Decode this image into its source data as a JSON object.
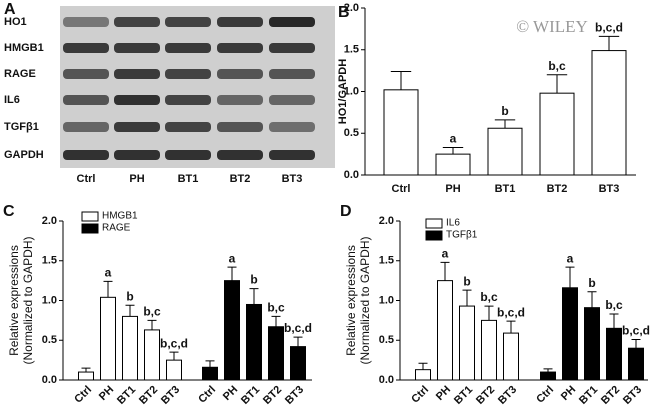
{
  "blot": {
    "panel": "A",
    "rows": [
      "HO1",
      "HMGB1",
      "RAGE",
      "IL6",
      "TGFβ1",
      "GAPDH"
    ],
    "lanes": [
      "Ctrl",
      "PH",
      "BT1",
      "BT2",
      "BT3"
    ]
  },
  "watermark": "© WILEY",
  "chart_data": [
    {
      "type": "bar",
      "panel": "B",
      "ylabel": "HO1/GAPDH",
      "categories": [
        "Ctrl",
        "PH",
        "BT1",
        "BT2",
        "BT3"
      ],
      "values": [
        1.02,
        0.25,
        0.56,
        0.98,
        1.49
      ],
      "errors": [
        0.22,
        0.08,
        0.1,
        0.22,
        0.17
      ],
      "annotations": [
        null,
        "a",
        "b",
        "b,c",
        "b,c,d"
      ],
      "color": "#ffffff",
      "ylim": [
        0,
        2
      ],
      "yticks": [
        {
          "value": 0,
          "label": "0.0"
        },
        {
          "value": 0.5,
          "label": "0.5"
        },
        {
          "value": 1,
          "label": "1.0"
        },
        {
          "value": 1.5,
          "label": "1.5"
        },
        {
          "value": 2,
          "label": "2.0"
        }
      ]
    },
    {
      "type": "bar",
      "panel": "C",
      "ylabel": [
        "Relative expressions",
        "(Normalized to GAPDH)"
      ],
      "categories": [
        "Ctrl",
        "PH",
        "BT1",
        "BT2",
        "BT3"
      ],
      "series": [
        {
          "name": "HMGB1",
          "color": "#ffffff",
          "values": [
            0.1,
            1.04,
            0.8,
            0.63,
            0.25
          ],
          "errors": [
            0.05,
            0.2,
            0.14,
            0.12,
            0.1
          ],
          "annotations": [
            null,
            "a",
            "b",
            "b,c",
            "b,c,d"
          ]
        },
        {
          "name": "RAGE",
          "color": "#000000",
          "values": [
            0.16,
            1.25,
            0.95,
            0.67,
            0.42
          ],
          "errors": [
            0.08,
            0.17,
            0.2,
            0.13,
            0.12
          ],
          "annotations": [
            null,
            "a",
            "b",
            "b,c",
            "b,c,d"
          ]
        }
      ],
      "ylim": [
        0,
        2
      ],
      "yticks": [
        {
          "value": 0,
          "label": "0.0"
        },
        {
          "value": 0.5,
          "label": "0.5"
        },
        {
          "value": 1,
          "label": "1.0"
        },
        {
          "value": 1.5,
          "label": "1.5"
        },
        {
          "value": 2,
          "label": "2.0"
        }
      ]
    },
    {
      "type": "bar",
      "panel": "D",
      "ylabel": [
        "Relative expressions",
        "(Normalized to GAPDH)"
      ],
      "categories": [
        "Ctrl",
        "PH",
        "BT1",
        "BT2",
        "BT3"
      ],
      "series": [
        {
          "name": "IL6",
          "color": "#ffffff",
          "values": [
            0.13,
            1.25,
            0.93,
            0.75,
            0.59
          ],
          "errors": [
            0.08,
            0.23,
            0.2,
            0.18,
            0.15
          ],
          "annotations": [
            null,
            "a",
            "b",
            "b,c",
            "b,c,d"
          ]
        },
        {
          "name": "TGFβ1",
          "color": "#000000",
          "values": [
            0.1,
            1.16,
            0.91,
            0.65,
            0.4
          ],
          "errors": [
            0.04,
            0.26,
            0.2,
            0.18,
            0.11
          ],
          "annotations": [
            null,
            "a",
            "b",
            "b,c",
            "b,c,d"
          ]
        }
      ],
      "ylim": [
        0,
        2
      ],
      "yticks": [
        {
          "value": 0,
          "label": "0.0"
        },
        {
          "value": 0.5,
          "label": "0.5"
        },
        {
          "value": 1,
          "label": "1.0"
        },
        {
          "value": 1.5,
          "label": "1.5"
        },
        {
          "value": 2,
          "label": "2.0"
        }
      ]
    }
  ]
}
